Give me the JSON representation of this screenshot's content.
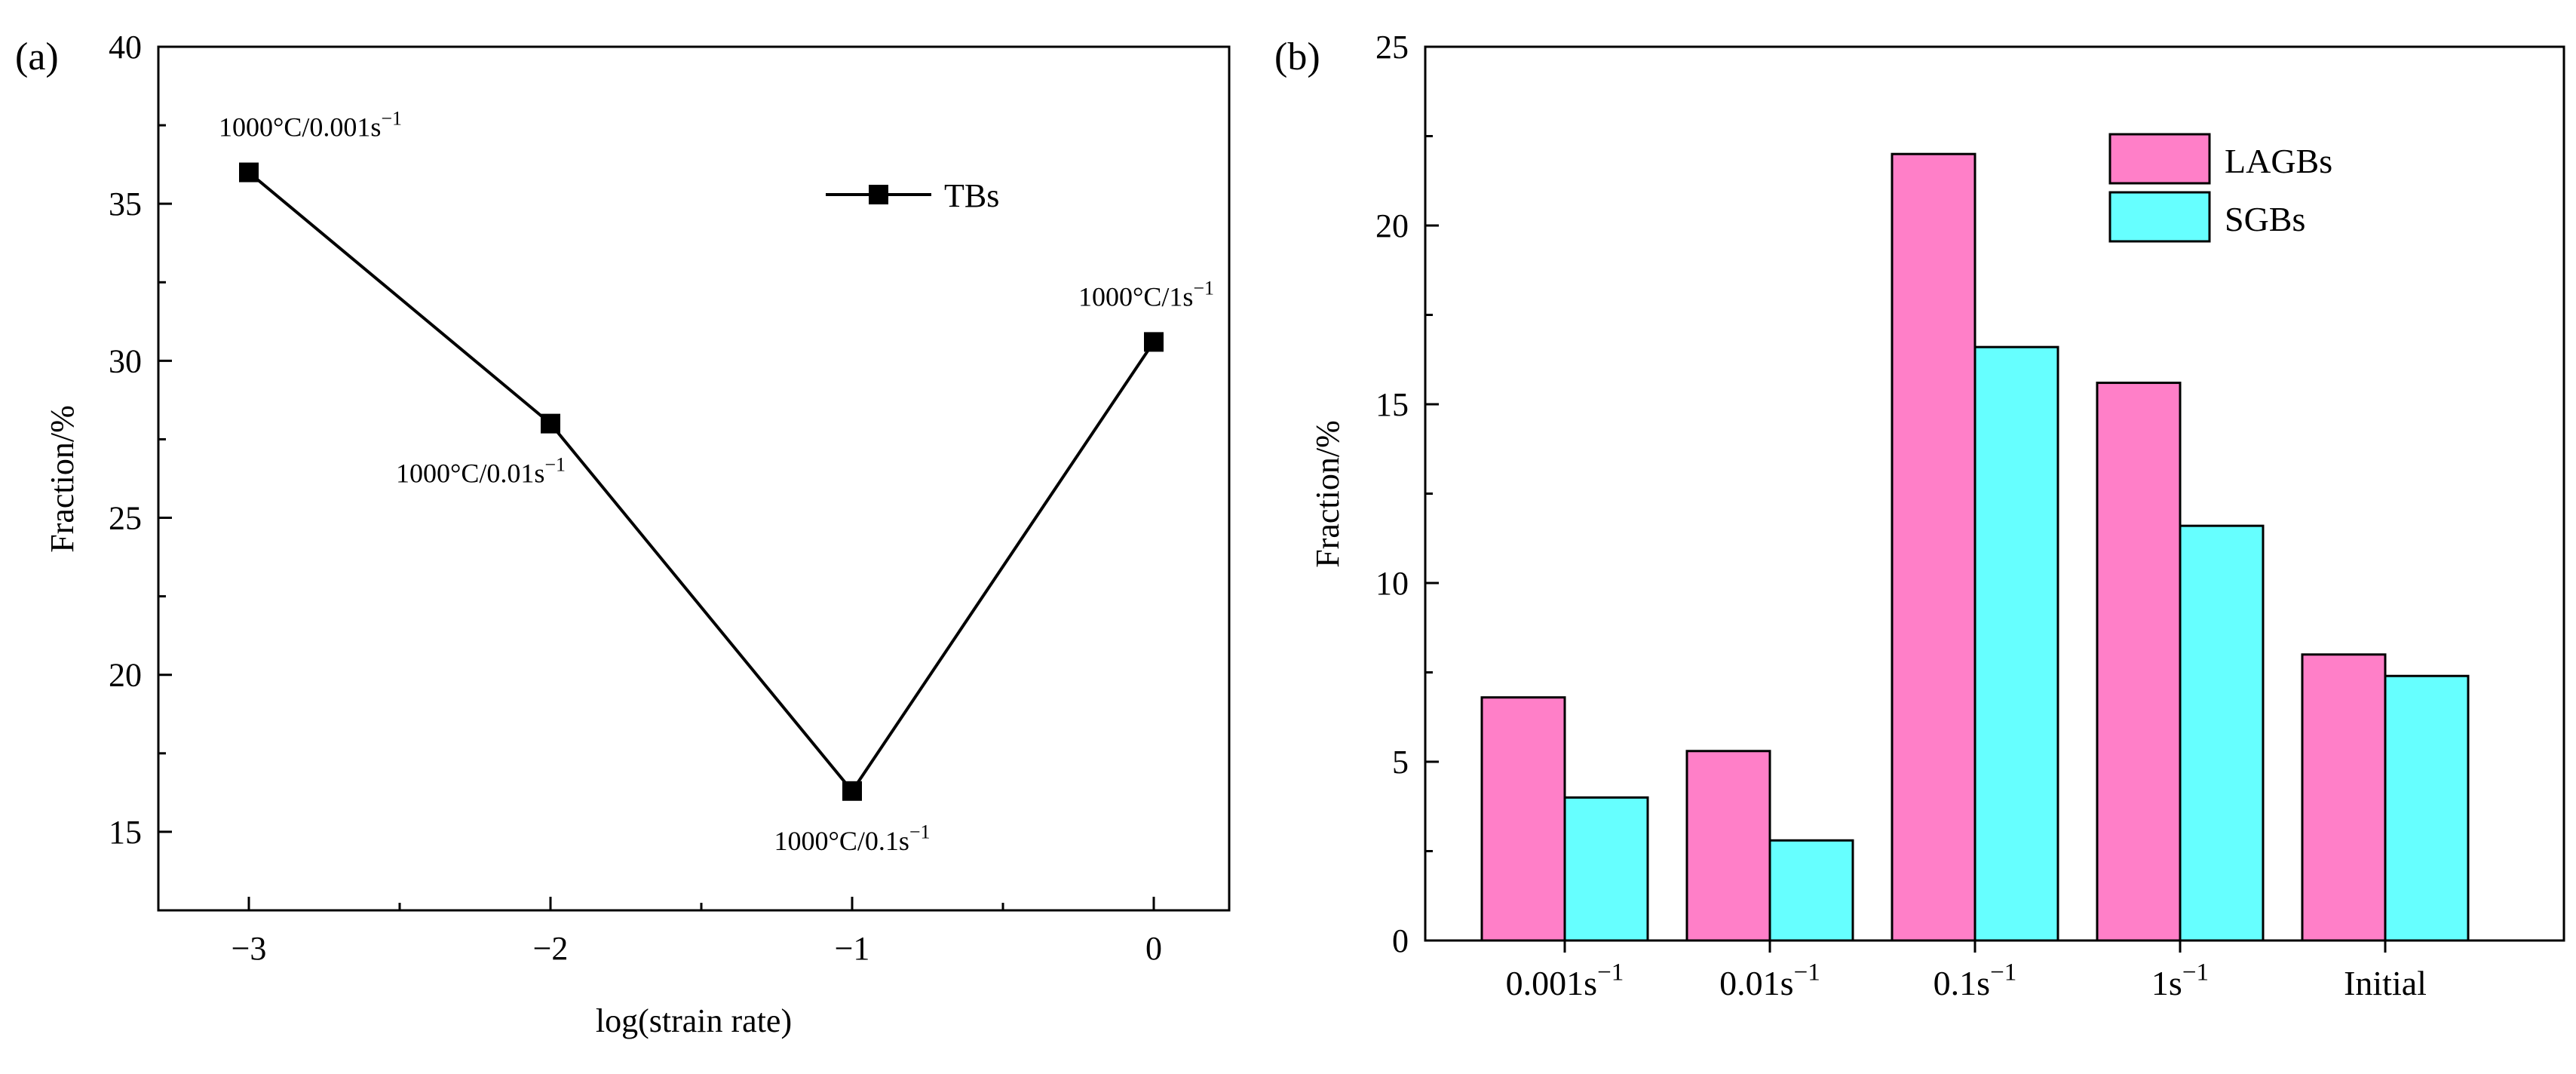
{
  "chart_data": [
    {
      "panel_label": "(a)",
      "type": "line",
      "xlabel": "log(strain rate)",
      "ylabel": "Fraction/%",
      "xlim": [
        -3.3,
        0.25
      ],
      "ylim": [
        12.5,
        40
      ],
      "x_ticks": [
        -3,
        -2,
        -1,
        0
      ],
      "x_tick_labels": [
        "−3",
        "−2",
        "−1",
        "0"
      ],
      "x_minor_ticks": [
        -2.5,
        -1.5,
        -0.5
      ],
      "y_ticks": [
        15,
        20,
        25,
        30,
        35,
        40
      ],
      "y_tick_labels": [
        "15",
        "20",
        "25",
        "30",
        "35",
        "40"
      ],
      "legend": {
        "position": "top-right",
        "entries": [
          "TBs"
        ]
      },
      "series": [
        {
          "name": "TBs",
          "color": "#000000",
          "marker": "square",
          "x": [
            -3,
            -2,
            -1,
            0
          ],
          "y": [
            36.0,
            28.0,
            16.3,
            30.6
          ],
          "point_labels": [
            {
              "base": "1000°C/0.001s",
              "sup": "−1",
              "anchor": "start",
              "place": "above"
            },
            {
              "base": "1000°C/0.01s",
              "sup": "−1",
              "anchor": "end",
              "place": "below"
            },
            {
              "base": "1000°C/0.1s",
              "sup": "−1",
              "anchor": "middle",
              "place": "below"
            },
            {
              "base": "1000°C/1s",
              "sup": "−1",
              "anchor": "middle",
              "place": "above"
            }
          ]
        }
      ]
    },
    {
      "panel_label": "(b)",
      "type": "bar",
      "xlabel": "",
      "ylabel": "Fraction/%",
      "ylim": [
        0,
        25
      ],
      "y_ticks": [
        0,
        5,
        10,
        15,
        20,
        25
      ],
      "y_tick_labels": [
        "0",
        "5",
        "10",
        "15",
        "20",
        "25"
      ],
      "categories": [
        {
          "base": "0.001s",
          "sup": "−1"
        },
        {
          "base": "0.01s",
          "sup": "−1"
        },
        {
          "base": "0.1s",
          "sup": "−1"
        },
        {
          "base": "1s",
          "sup": "−1"
        },
        {
          "base": "Initial",
          "sup": ""
        }
      ],
      "legend": {
        "position": "top-right",
        "entries": [
          "LAGBs",
          "SGBs"
        ]
      },
      "series": [
        {
          "name": "LAGBs",
          "color": "#ff7fc8",
          "values": [
            6.8,
            5.3,
            22.0,
            15.6,
            8.0
          ]
        },
        {
          "name": "SGBs",
          "color": "#66ffff",
          "values": [
            4.0,
            2.8,
            16.6,
            11.6,
            7.4
          ]
        }
      ]
    }
  ]
}
